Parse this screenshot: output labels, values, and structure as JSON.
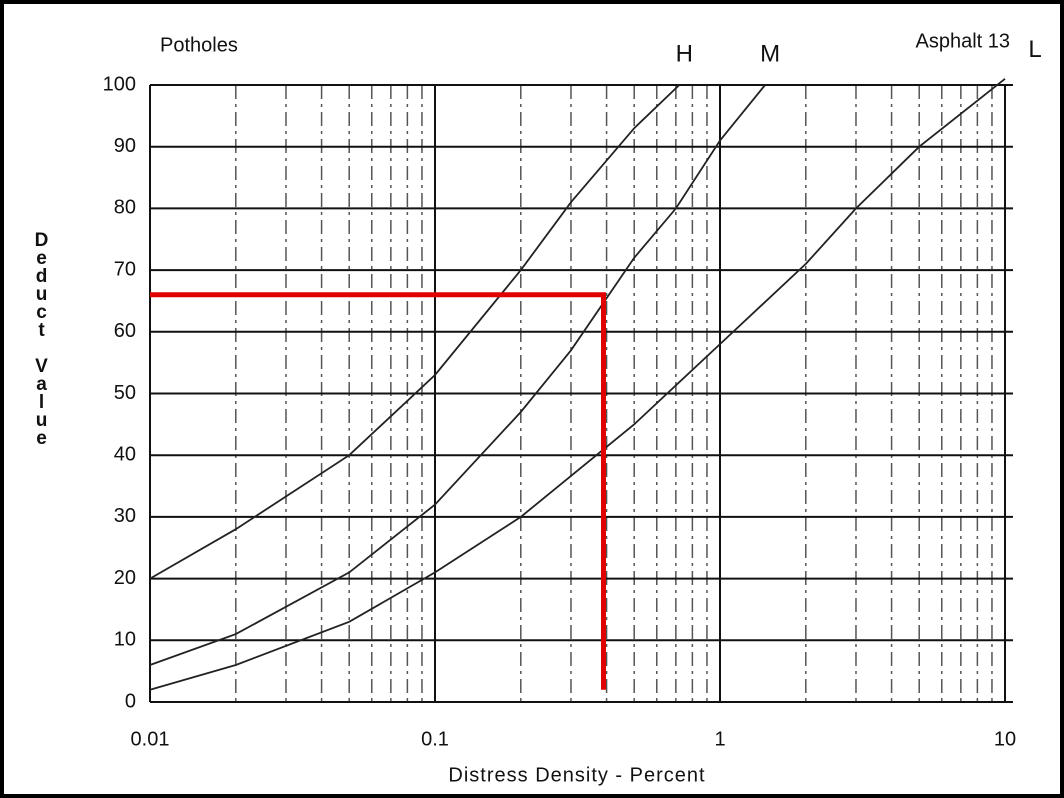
{
  "chart_data": {
    "type": "line",
    "title": "Potholes",
    "subtitle": "Asphalt 13",
    "xlabel": "Distress Density - Percent",
    "ylabel": "Deduct Value",
    "xscale": "log",
    "xlim": [
      0.01,
      10
    ],
    "xticks": [
      0.01,
      0.1,
      1,
      10
    ],
    "xminorticks": [
      0.02,
      0.03,
      0.04,
      0.05,
      0.06,
      0.07,
      0.08,
      0.09,
      0.2,
      0.3,
      0.4,
      0.5,
      0.6,
      0.7,
      0.8,
      0.9,
      2,
      3,
      4,
      5,
      6,
      7,
      8,
      9
    ],
    "ylim": [
      0,
      100
    ],
    "yticks": [
      0,
      10,
      20,
      30,
      40,
      50,
      60,
      70,
      80,
      90,
      100
    ],
    "grid": true,
    "series": [
      {
        "name": "H",
        "color": "#222",
        "x": [
          0.01,
          0.02,
          0.05,
          0.1,
          0.2,
          0.3,
          0.5,
          0.72
        ],
        "values": [
          20,
          28,
          40,
          53,
          70,
          81,
          93,
          100
        ]
      },
      {
        "name": "M",
        "color": "#222",
        "x": [
          0.01,
          0.02,
          0.05,
          0.1,
          0.2,
          0.3,
          0.5,
          0.7,
          1,
          1.44
        ],
        "values": [
          6,
          11,
          21,
          32,
          47,
          57,
          72,
          80,
          91,
          100
        ]
      },
      {
        "name": "L",
        "color": "#222",
        "x": [
          0.01,
          0.02,
          0.05,
          0.1,
          0.2,
          0.5,
          1,
          2,
          3,
          5,
          10
        ],
        "values": [
          2,
          6,
          13,
          21,
          30,
          45,
          58,
          71,
          80,
          90,
          101
        ]
      }
    ],
    "reference_line": {
      "color": "#e00000",
      "x": [
        0.01,
        0.39,
        0.39
      ],
      "values": [
        66,
        66,
        2
      ]
    }
  }
}
